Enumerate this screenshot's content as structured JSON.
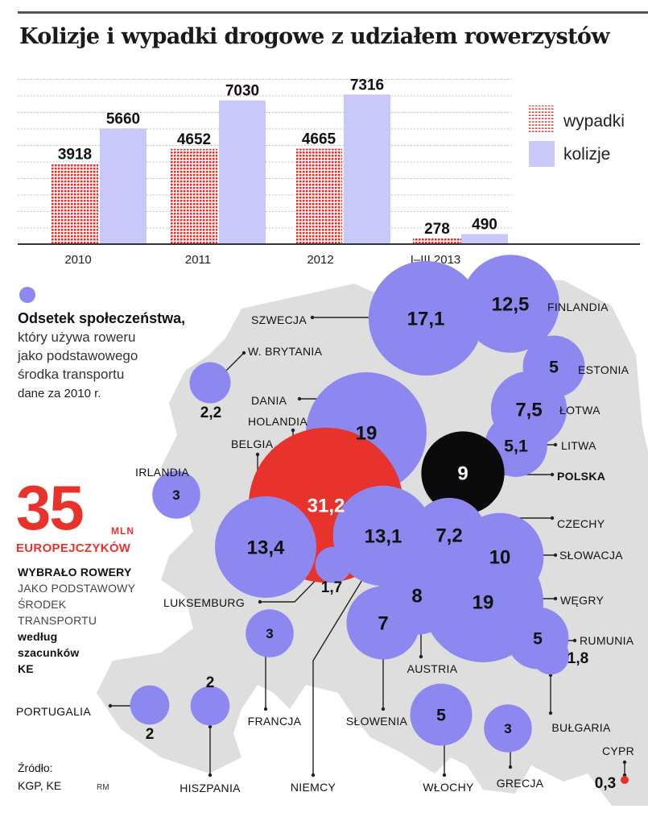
{
  "title": "Kolizje i wypadki drogowe z udziałem rowerzystów",
  "chart_data": [
    {
      "type": "bar",
      "categories": [
        "2010",
        "2011",
        "2012",
        "I–III 2013"
      ],
      "series": [
        {
          "name": "wypadki",
          "values": [
            3918,
            4652,
            4665,
            278
          ],
          "color": "#e8322c"
        },
        {
          "name": "kolizje",
          "values": [
            5660,
            7030,
            7316,
            490
          ],
          "color": "#c8c9f8"
        }
      ],
      "ylim": [
        0,
        7800
      ],
      "grid": true,
      "legend": "right"
    },
    {
      "type": "scatter",
      "encoding": "bubble map of Europe; bubble size = value",
      "unit": "%",
      "points": [
        {
          "label": "SZWECJA",
          "value": "17,1",
          "v": 17.1
        },
        {
          "label": "FINLANDIA",
          "value": "12,5",
          "v": 12.5
        },
        {
          "label": "ESTONIA",
          "value": "5",
          "v": 5
        },
        {
          "label": "W. BRYTANIA",
          "value": "2,2",
          "v": 2.2
        },
        {
          "label": "DANIA",
          "value": "19",
          "v": 19
        },
        {
          "label": "HOLANDIA",
          "value": "31,2",
          "v": 31.2
        },
        {
          "label": "ŁOTWA",
          "value": "7,5",
          "v": 7.5
        },
        {
          "label": "LITWA",
          "value": "5,1",
          "v": 5.1
        },
        {
          "label": "POLSKA",
          "value": "9",
          "v": 9
        },
        {
          "label": "BELGIA",
          "value": "13,4",
          "v": 13.4
        },
        {
          "label": "IRLANDIA",
          "value": "3",
          "v": 3
        },
        {
          "label": "NIEMCY",
          "value": "13,1",
          "v": 13.1
        },
        {
          "label": "CZECHY",
          "value": "7,2",
          "v": 7.2
        },
        {
          "label": "SŁOWACJA",
          "value": "10",
          "v": 10
        },
        {
          "label": "LUKSEMBURG",
          "value": "1,7",
          "v": 1.7
        },
        {
          "label": "AUSTRIA",
          "value": "8",
          "v": 8
        },
        {
          "label": "WĘGRY",
          "value": "19",
          "v": 19
        },
        {
          "label": "SŁOWENIA",
          "value": "7",
          "v": 7
        },
        {
          "label": "RUMUNIA",
          "value": "5",
          "v": 5
        },
        {
          "label": "FRANCJA",
          "value": "3",
          "v": 3
        },
        {
          "label": "BUŁGARIA",
          "value": "1,8",
          "v": 1.8
        },
        {
          "label": "PORTUGALIA",
          "value": "2",
          "v": 2
        },
        {
          "label": "HISZPANIA",
          "value": "2",
          "v": 2
        },
        {
          "label": "WŁOCHY",
          "value": "5",
          "v": 5
        },
        {
          "label": "GRECJA",
          "value": "3",
          "v": 3
        },
        {
          "label": "CYPR",
          "value": "0,3",
          "v": 0.3
        }
      ]
    }
  ],
  "colors": {
    "bubble": "#8c88ef",
    "highlight": "#e8322c",
    "poland": "#0a0a0a",
    "land": "#dedede",
    "kolizje": "#c8c9f8",
    "wypadki": "#e8322c"
  },
  "intro": {
    "bold": "Odsetek społeczeństwa,",
    "lines": [
      "który używa roweru",
      "jako podstawowego",
      "środka transportu"
    ],
    "note": "dane za 2010 r."
  },
  "highlight": {
    "number": "35",
    "unit": "MLN",
    "label": "EUROPEJCZYKÓW",
    "bold": "WYBRAŁO ROWERY",
    "lines": [
      "JAKO PODSTAWOWY",
      "ŚRODEK",
      "TRANSPORTU"
    ],
    "source_lines": [
      "według",
      "szacunków",
      "KE"
    ]
  },
  "source": {
    "label": "Źródło:",
    "text": "KGP, KE",
    "author": "RM"
  }
}
